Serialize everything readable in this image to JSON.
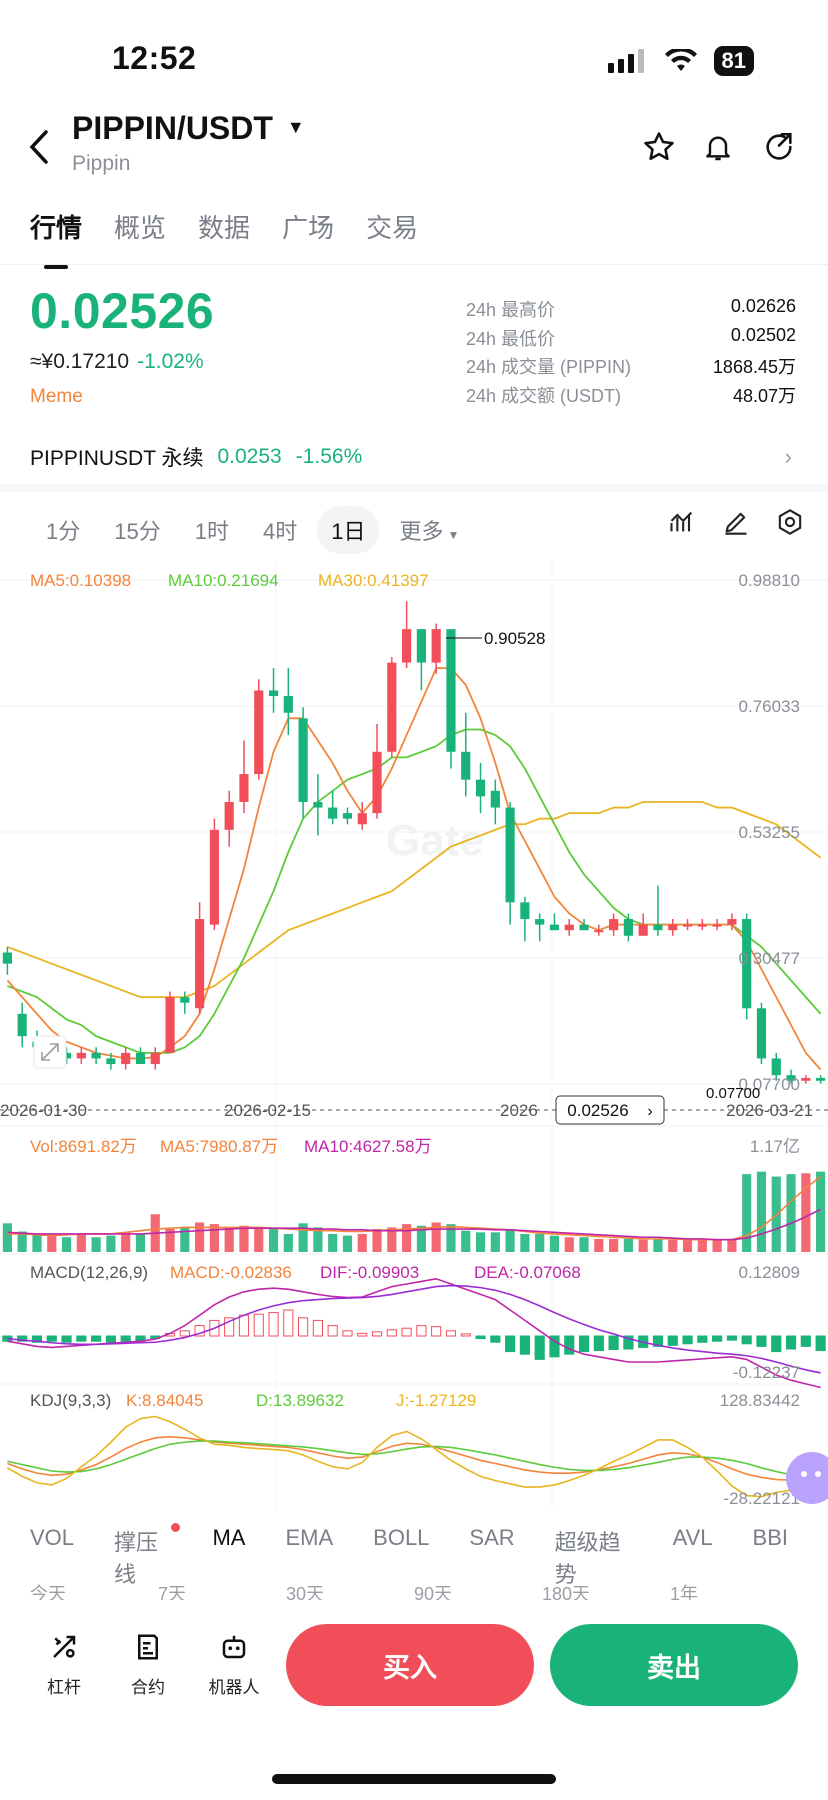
{
  "status": {
    "time": "12:52",
    "battery": "81"
  },
  "header": {
    "title": "PIPPIN/USDT",
    "subtitle": "Pippin"
  },
  "tabs": [
    "行情",
    "概览",
    "数据",
    "广场",
    "交易"
  ],
  "ticker": {
    "price": "0.02526",
    "fiat": "≈¥0.17210",
    "change": "-1.02%",
    "tag": "Meme",
    "stats": [
      {
        "label": "24h 最高价",
        "value": "0.02626"
      },
      {
        "label": "24h 最低价",
        "value": "0.02502"
      },
      {
        "label": "24h 成交量 (PIPPIN)",
        "value": "1868.45万"
      },
      {
        "label": "24h 成交额 (USDT)",
        "value": "48.07万"
      }
    ]
  },
  "perpetual": {
    "name": "PIPPINUSDT 永续",
    "price": "0.0253",
    "change": "-1.56%"
  },
  "timeframes": [
    "1分",
    "15分",
    "1时",
    "4时",
    "1日",
    "更多"
  ],
  "selected_timeframe": "1日",
  "main_legend": {
    "ma5": "MA5:0.10398",
    "ma10": "MA10:0.21694",
    "ma30": "MA30:0.41397"
  },
  "price_axis": [
    "0.98810",
    "0.76033",
    "0.53255",
    "0.30477",
    "0.07700"
  ],
  "high_marker": "0.90528",
  "low_marker": "0.07700",
  "current_price_tag": "0.02526",
  "dates": [
    "2026-01-30",
    "2026-02-15",
    "2026",
    "2026-03-21"
  ],
  "watermark": "Gate",
  "vol_legend": {
    "vol": "Vol:8691.82万",
    "ma5": "MA5:7980.87万",
    "ma10": "MA10:4627.58万",
    "max": "1.17亿"
  },
  "macd_legend": {
    "title": "MACD(12,26,9)",
    "macd": "MACD:-0.02836",
    "dif": "DIF:-0.09903",
    "dea": "DEA:-0.07068",
    "max": "0.12809",
    "min": "-0.12237"
  },
  "kdj_legend": {
    "title": "KDJ(9,3,3)",
    "k": "K:8.84045",
    "d": "D:13.89632",
    "j": "J:-1.27129",
    "max": "128.83442",
    "min": "-28.22121"
  },
  "indicator_tabs": [
    "VOL",
    "撑压线",
    "MA",
    "EMA",
    "BOLL",
    "SAR",
    "超级趋势",
    "AVL",
    "BBI"
  ],
  "ranges": [
    "今天",
    "7天",
    "30天",
    "90天",
    "180天",
    "1年"
  ],
  "bottom": {
    "leverage": "杠杆",
    "contract": "合约",
    "robot": "机器人",
    "buy": "买入",
    "sell": "卖出"
  },
  "colors": {
    "up": "#f24e5a",
    "down": "#19b37a",
    "ma5": "#f3843b",
    "ma10": "#5ccb3a",
    "ma30": "#e9b420",
    "dif": "#c026a8"
  },
  "chart_data": {
    "type": "candlestick",
    "ylim": [
      0.077,
      0.9881
    ],
    "candles": [
      [
        0.32,
        0.3,
        0.33,
        0.28
      ],
      [
        0.21,
        0.17,
        0.23,
        0.15
      ],
      [
        0.16,
        0.15,
        0.18,
        0.13
      ],
      [
        0.14,
        0.15,
        0.17,
        0.13
      ],
      [
        0.14,
        0.13,
        0.15,
        0.12
      ],
      [
        0.13,
        0.14,
        0.15,
        0.12
      ],
      [
        0.14,
        0.13,
        0.15,
        0.12
      ],
      [
        0.13,
        0.12,
        0.14,
        0.11
      ],
      [
        0.12,
        0.14,
        0.15,
        0.11
      ],
      [
        0.14,
        0.12,
        0.15,
        0.12
      ],
      [
        0.12,
        0.14,
        0.15,
        0.11
      ],
      [
        0.14,
        0.24,
        0.25,
        0.14
      ],
      [
        0.24,
        0.23,
        0.25,
        0.21
      ],
      [
        0.22,
        0.38,
        0.41,
        0.21
      ],
      [
        0.37,
        0.54,
        0.56,
        0.36
      ],
      [
        0.54,
        0.59,
        0.61,
        0.51
      ],
      [
        0.59,
        0.64,
        0.7,
        0.57
      ],
      [
        0.64,
        0.79,
        0.81,
        0.63
      ],
      [
        0.79,
        0.78,
        0.83,
        0.75
      ],
      [
        0.78,
        0.75,
        0.83,
        0.71
      ],
      [
        0.74,
        0.59,
        0.76,
        0.56
      ],
      [
        0.59,
        0.58,
        0.64,
        0.53
      ],
      [
        0.58,
        0.56,
        0.61,
        0.55
      ],
      [
        0.57,
        0.56,
        0.58,
        0.55
      ],
      [
        0.55,
        0.57,
        0.59,
        0.54
      ],
      [
        0.57,
        0.68,
        0.73,
        0.56
      ],
      [
        0.68,
        0.84,
        0.85,
        0.67
      ],
      [
        0.84,
        0.9,
        0.95,
        0.83
      ],
      [
        0.9,
        0.84,
        0.9,
        0.79
      ],
      [
        0.84,
        0.9,
        0.91,
        0.82
      ],
      [
        0.9,
        0.68,
        0.9,
        0.65
      ],
      [
        0.68,
        0.63,
        0.75,
        0.6
      ],
      [
        0.63,
        0.6,
        0.66,
        0.57
      ],
      [
        0.61,
        0.58,
        0.63,
        0.55
      ],
      [
        0.58,
        0.41,
        0.59,
        0.37
      ],
      [
        0.41,
        0.38,
        0.42,
        0.34
      ],
      [
        0.38,
        0.37,
        0.39,
        0.34
      ],
      [
        0.37,
        0.36,
        0.39,
        0.36
      ],
      [
        0.36,
        0.37,
        0.38,
        0.35
      ],
      [
        0.37,
        0.36,
        0.38,
        0.36
      ],
      [
        0.36,
        0.36,
        0.37,
        0.35
      ],
      [
        0.36,
        0.38,
        0.39,
        0.35
      ],
      [
        0.38,
        0.35,
        0.39,
        0.34
      ],
      [
        0.35,
        0.37,
        0.39,
        0.35
      ],
      [
        0.37,
        0.36,
        0.44,
        0.35
      ],
      [
        0.36,
        0.37,
        0.38,
        0.35
      ],
      [
        0.37,
        0.37,
        0.38,
        0.36
      ],
      [
        0.37,
        0.37,
        0.38,
        0.36
      ],
      [
        0.37,
        0.37,
        0.38,
        0.36
      ],
      [
        0.37,
        0.38,
        0.39,
        0.36
      ],
      [
        0.38,
        0.22,
        0.39,
        0.2
      ],
      [
        0.22,
        0.13,
        0.23,
        0.12
      ],
      [
        0.13,
        0.1,
        0.14,
        0.09
      ],
      [
        0.1,
        0.09,
        0.11,
        0.085
      ],
      [
        0.09,
        0.095,
        0.1,
        0.085
      ],
      [
        0.095,
        0.09,
        0.1,
        0.085
      ]
    ],
    "ma5": [
      0.27,
      0.24,
      0.21,
      0.18,
      0.16,
      0.15,
      0.14,
      0.135,
      0.13,
      0.13,
      0.132,
      0.15,
      0.17,
      0.21,
      0.29,
      0.38,
      0.47,
      0.58,
      0.68,
      0.74,
      0.74,
      0.7,
      0.66,
      0.61,
      0.57,
      0.6,
      0.65,
      0.71,
      0.77,
      0.83,
      0.83,
      0.8,
      0.74,
      0.66,
      0.57,
      0.52,
      0.47,
      0.42,
      0.39,
      0.37,
      0.36,
      0.37,
      0.37,
      0.37,
      0.37,
      0.37,
      0.37,
      0.37,
      0.37,
      0.37,
      0.34,
      0.29,
      0.24,
      0.19,
      0.14,
      0.11
    ],
    "ma10": [
      0.26,
      0.25,
      0.24,
      0.22,
      0.2,
      0.19,
      0.17,
      0.16,
      0.15,
      0.14,
      0.14,
      0.14,
      0.15,
      0.17,
      0.21,
      0.26,
      0.31,
      0.37,
      0.43,
      0.5,
      0.56,
      0.59,
      0.61,
      0.63,
      0.64,
      0.65,
      0.67,
      0.67,
      0.68,
      0.69,
      0.71,
      0.72,
      0.72,
      0.71,
      0.69,
      0.65,
      0.6,
      0.55,
      0.5,
      0.46,
      0.43,
      0.4,
      0.38,
      0.37,
      0.37,
      0.37,
      0.37,
      0.37,
      0.37,
      0.37,
      0.35,
      0.33,
      0.3,
      0.27,
      0.24,
      0.21
    ],
    "ma30": [
      0.33,
      0.32,
      0.31,
      0.3,
      0.29,
      0.28,
      0.27,
      0.26,
      0.25,
      0.24,
      0.24,
      0.24,
      0.24,
      0.25,
      0.26,
      0.28,
      0.3,
      0.32,
      0.34,
      0.36,
      0.37,
      0.38,
      0.39,
      0.4,
      0.41,
      0.42,
      0.43,
      0.45,
      0.47,
      0.49,
      0.51,
      0.52,
      0.53,
      0.54,
      0.55,
      0.55,
      0.56,
      0.56,
      0.57,
      0.57,
      0.57,
      0.58,
      0.58,
      0.59,
      0.59,
      0.59,
      0.59,
      0.59,
      0.58,
      0.58,
      0.57,
      0.56,
      0.55,
      0.53,
      0.51,
      0.49
    ],
    "volume": [
      0.35,
      0.25,
      0.22,
      0.2,
      0.18,
      0.22,
      0.18,
      0.2,
      0.24,
      0.22,
      0.46,
      0.28,
      0.3,
      0.36,
      0.34,
      0.3,
      0.32,
      0.3,
      0.28,
      0.22,
      0.35,
      0.3,
      0.22,
      0.2,
      0.22,
      0.28,
      0.3,
      0.34,
      0.32,
      0.36,
      0.34,
      0.26,
      0.24,
      0.24,
      0.28,
      0.22,
      0.22,
      0.2,
      0.18,
      0.18,
      0.16,
      0.16,
      0.16,
      0.15,
      0.16,
      0.15,
      0.15,
      0.15,
      0.15,
      0.16,
      0.95,
      0.98,
      0.92,
      0.95,
      0.96,
      0.98
    ],
    "vol_ma5": [
      0.22,
      0.22,
      0.21,
      0.2,
      0.21,
      0.22,
      0.22,
      0.22,
      0.24,
      0.26,
      0.28,
      0.29,
      0.3,
      0.3,
      0.3,
      0.3,
      0.3,
      0.3,
      0.29,
      0.28,
      0.27,
      0.26,
      0.26,
      0.25,
      0.25,
      0.26,
      0.27,
      0.28,
      0.29,
      0.3,
      0.31,
      0.3,
      0.29,
      0.28,
      0.27,
      0.25,
      0.23,
      0.22,
      0.21,
      0.2,
      0.19,
      0.18,
      0.17,
      0.16,
      0.16,
      0.16,
      0.15,
      0.15,
      0.15,
      0.15,
      0.2,
      0.3,
      0.45,
      0.62,
      0.78,
      0.92
    ],
    "vol_ma10": [
      0.24,
      0.23,
      0.22,
      0.22,
      0.22,
      0.22,
      0.22,
      0.22,
      0.22,
      0.22,
      0.23,
      0.24,
      0.25,
      0.26,
      0.27,
      0.28,
      0.29,
      0.29,
      0.29,
      0.29,
      0.29,
      0.28,
      0.28,
      0.27,
      0.27,
      0.26,
      0.26,
      0.26,
      0.27,
      0.28,
      0.28,
      0.28,
      0.28,
      0.27,
      0.27,
      0.26,
      0.25,
      0.24,
      0.23,
      0.22,
      0.21,
      0.2,
      0.19,
      0.18,
      0.18,
      0.17,
      0.16,
      0.16,
      0.15,
      0.15,
      0.17,
      0.22,
      0.28,
      0.35,
      0.43,
      0.52
    ],
    "macd_hist": [
      -0.01,
      -0.01,
      -0.012,
      -0.01,
      -0.012,
      -0.01,
      -0.01,
      -0.012,
      -0.01,
      -0.01,
      -0.005,
      0.005,
      0.01,
      0.02,
      0.03,
      0.035,
      0.04,
      0.042,
      0.045,
      0.05,
      0.035,
      0.03,
      0.02,
      0.01,
      0.005,
      0.008,
      0.012,
      0.015,
      0.02,
      0.018,
      0.01,
      0.004,
      -0.005,
      -0.012,
      -0.03,
      -0.035,
      -0.045,
      -0.04,
      -0.035,
      -0.03,
      -0.028,
      -0.026,
      -0.025,
      -0.022,
      -0.02,
      -0.018,
      -0.015,
      -0.012,
      -0.01,
      -0.008,
      -0.015,
      -0.02,
      -0.03,
      -0.025,
      -0.02,
      -0.028
    ],
    "dif": [
      -0.01,
      -0.015,
      -0.02,
      -0.022,
      -0.02,
      -0.018,
      -0.016,
      -0.014,
      -0.012,
      -0.01,
      -0.006,
      0.005,
      0.02,
      0.04,
      0.06,
      0.075,
      0.085,
      0.09,
      0.092,
      0.09,
      0.085,
      0.08,
      0.076,
      0.074,
      0.075,
      0.085,
      0.095,
      0.1,
      0.105,
      0.11,
      0.1,
      0.09,
      0.08,
      0.07,
      0.05,
      0.03,
      0.01,
      -0.01,
      -0.025,
      -0.035,
      -0.04,
      -0.045,
      -0.05,
      -0.05,
      -0.05,
      -0.048,
      -0.046,
      -0.044,
      -0.042,
      -0.04,
      -0.045,
      -0.06,
      -0.075,
      -0.085,
      -0.092,
      -0.099
    ],
    "dea": [
      -0.005,
      -0.008,
      -0.01,
      -0.013,
      -0.015,
      -0.016,
      -0.016,
      -0.015,
      -0.014,
      -0.013,
      -0.012,
      -0.008,
      -0.003,
      0.005,
      0.015,
      0.028,
      0.04,
      0.05,
      0.058,
      0.064,
      0.068,
      0.07,
      0.072,
      0.073,
      0.074,
      0.076,
      0.08,
      0.085,
      0.09,
      0.095,
      0.097,
      0.096,
      0.093,
      0.088,
      0.08,
      0.07,
      0.058,
      0.045,
      0.033,
      0.022,
      0.012,
      0.004,
      -0.005,
      -0.012,
      -0.018,
      -0.023,
      -0.027,
      -0.03,
      -0.033,
      -0.035,
      -0.038,
      -0.043,
      -0.05,
      -0.058,
      -0.065,
      -0.071
    ],
    "k": [
      40,
      30,
      22,
      18,
      20,
      28,
      38,
      52,
      68,
      80,
      88,
      90,
      88,
      84,
      80,
      78,
      76,
      74,
      72,
      70,
      66,
      60,
      54,
      50,
      52,
      62,
      72,
      78,
      76,
      70,
      62,
      54,
      46,
      40,
      34,
      28,
      24,
      22,
      22,
      24,
      28,
      34,
      40,
      48,
      56,
      60,
      58,
      52,
      42,
      30,
      20,
      14,
      10,
      9,
      9,
      9
    ],
    "d": [
      44,
      38,
      32,
      26,
      24,
      25,
      30,
      38,
      48,
      58,
      68,
      76,
      80,
      82,
      82,
      80,
      79,
      77,
      75,
      73,
      71,
      68,
      64,
      60,
      57,
      58,
      62,
      67,
      71,
      72,
      70,
      66,
      61,
      56,
      50,
      44,
      38,
      33,
      29,
      27,
      27,
      29,
      32,
      37,
      42,
      48,
      52,
      52,
      50,
      46,
      40,
      32,
      25,
      19,
      15,
      14
    ],
    "j": [
      32,
      16,
      4,
      0,
      12,
      34,
      54,
      80,
      108,
      124,
      128,
      118,
      104,
      88,
      76,
      74,
      70,
      68,
      66,
      64,
      56,
      44,
      34,
      30,
      42,
      70,
      92,
      100,
      86,
      66,
      46,
      30,
      16,
      8,
      2,
      -4,
      -4,
      0,
      8,
      18,
      30,
      44,
      56,
      70,
      84,
      84,
      70,
      52,
      26,
      -2,
      -20,
      -22,
      -14,
      -10,
      -4,
      -1
    ]
  }
}
